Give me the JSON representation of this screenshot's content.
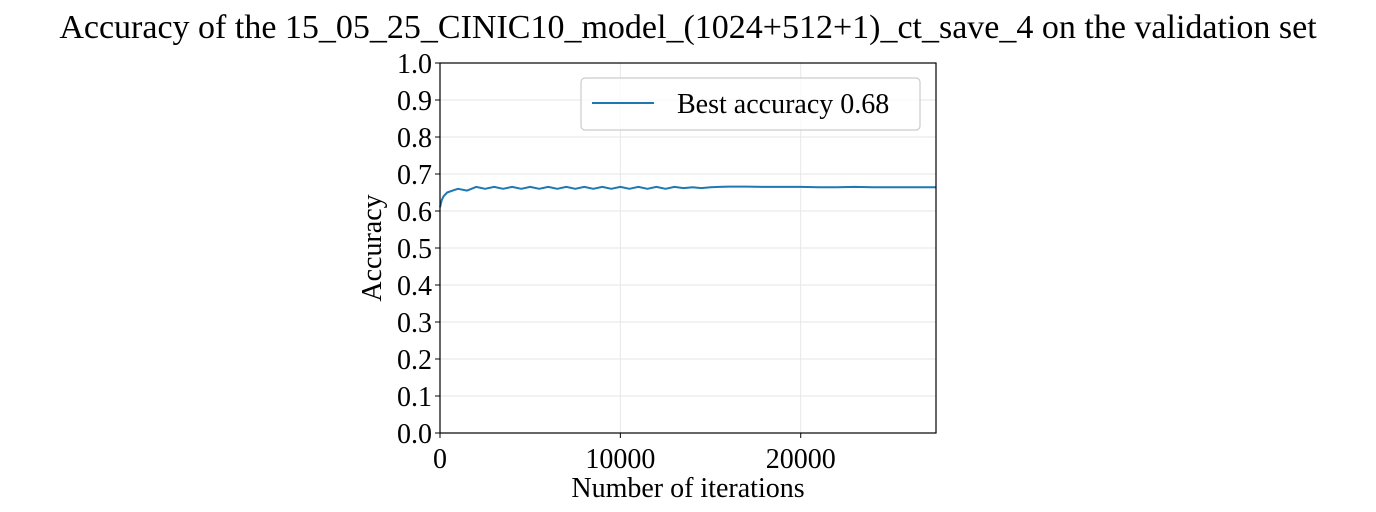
{
  "chart_data": {
    "type": "line",
    "title": "Accuracy of the 15_05_25_CINIC10_model_(1024+512+1)_ct_save_4 on the validation set",
    "xlabel": "Number of iterations",
    "ylabel": "Accuracy",
    "xlim": [
      0,
      27500
    ],
    "ylim": [
      0.0,
      1.0
    ],
    "xticks": [
      0,
      10000,
      20000
    ],
    "xtick_labels": [
      "0",
      "10000",
      "20000"
    ],
    "yticks": [
      0.0,
      0.1,
      0.2,
      0.3,
      0.4,
      0.5,
      0.6,
      0.7,
      0.8,
      0.9,
      1.0
    ],
    "ytick_labels": [
      "0.0",
      "0.1",
      "0.2",
      "0.3",
      "0.4",
      "0.5",
      "0.6",
      "0.7",
      "0.8",
      "0.9",
      "1.0"
    ],
    "grid": true,
    "legend_position": "upper-right",
    "series": [
      {
        "name": "Best accuracy 0.68",
        "color": "#1f77b4",
        "x": [
          0,
          100,
          200,
          400,
          700,
          1000,
          1500,
          2000,
          2500,
          3000,
          3500,
          4000,
          4500,
          5000,
          5500,
          6000,
          6500,
          7000,
          7500,
          8000,
          8500,
          9000,
          9500,
          10000,
          10500,
          11000,
          11500,
          12000,
          12500,
          13000,
          13500,
          14000,
          14500,
          15000,
          15500,
          16000,
          17000,
          18000,
          19000,
          20000,
          21000,
          22000,
          23000,
          24000,
          25000,
          26000,
          27000,
          27500
        ],
        "y": [
          0.61,
          0.63,
          0.64,
          0.65,
          0.655,
          0.66,
          0.655,
          0.665,
          0.66,
          0.665,
          0.66,
          0.665,
          0.66,
          0.665,
          0.66,
          0.665,
          0.66,
          0.665,
          0.66,
          0.665,
          0.66,
          0.665,
          0.66,
          0.665,
          0.66,
          0.665,
          0.66,
          0.665,
          0.66,
          0.665,
          0.662,
          0.664,
          0.662,
          0.664,
          0.665,
          0.666,
          0.666,
          0.665,
          0.665,
          0.665,
          0.664,
          0.664,
          0.665,
          0.664,
          0.664,
          0.664,
          0.664,
          0.664
        ]
      }
    ]
  }
}
